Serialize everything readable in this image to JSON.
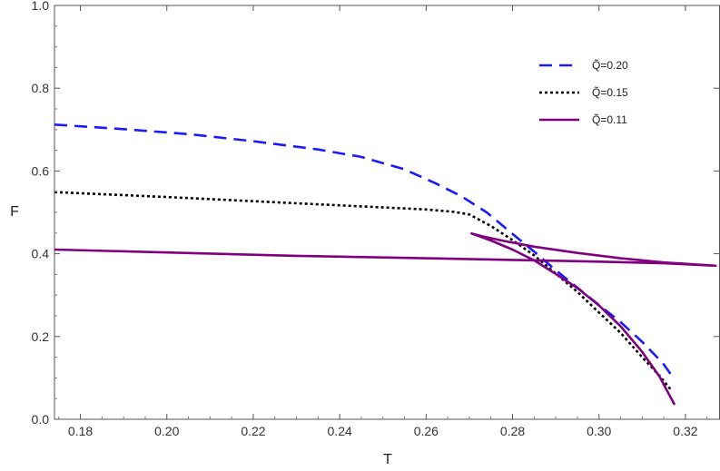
{
  "chart_data": {
    "type": "line",
    "xlabel": "T",
    "ylabel": "F",
    "xlim": [
      0.174,
      0.328
    ],
    "ylim": [
      0.0,
      1.0
    ],
    "xticks": [
      "0.18",
      "0.20",
      "0.22",
      "0.24",
      "0.26",
      "0.28",
      "0.30",
      "0.32"
    ],
    "yticks": [
      "0.0",
      "0.2",
      "0.4",
      "0.6",
      "0.8",
      "1.0"
    ],
    "grid": false,
    "legend_position": "top-right",
    "series": [
      {
        "name": "Q̃=0.20",
        "color": "#1a1aff",
        "style": "dashed",
        "points": [
          [
            0.174,
            0.712
          ],
          [
            0.19,
            0.701
          ],
          [
            0.205,
            0.689
          ],
          [
            0.22,
            0.672
          ],
          [
            0.235,
            0.652
          ],
          [
            0.245,
            0.634
          ],
          [
            0.255,
            0.604
          ],
          [
            0.262,
            0.571
          ],
          [
            0.268,
            0.54
          ],
          [
            0.274,
            0.5
          ],
          [
            0.28,
            0.448
          ],
          [
            0.285,
            0.405
          ],
          [
            0.29,
            0.36
          ],
          [
            0.295,
            0.318
          ],
          [
            0.3,
            0.276
          ],
          [
            0.305,
            0.235
          ],
          [
            0.31,
            0.187
          ],
          [
            0.3148,
            0.135
          ],
          [
            0.3172,
            0.1
          ]
        ]
      },
      {
        "name": "Q̃=0.15",
        "color": "#000000",
        "style": "dotted",
        "points": [
          [
            0.174,
            0.549
          ],
          [
            0.2,
            0.537
          ],
          [
            0.23,
            0.522
          ],
          [
            0.26,
            0.507
          ],
          [
            0.2665,
            0.501
          ],
          [
            0.27,
            0.495
          ],
          [
            0.275,
            0.467
          ],
          [
            0.28,
            0.433
          ],
          [
            0.285,
            0.396
          ],
          [
            0.29,
            0.352
          ],
          [
            0.295,
            0.308
          ],
          [
            0.3,
            0.258
          ],
          [
            0.305,
            0.209
          ],
          [
            0.31,
            0.15
          ],
          [
            0.314,
            0.105
          ],
          [
            0.3165,
            0.073
          ]
        ]
      },
      {
        "name": "Q̃=0.11",
        "color": "#800080",
        "style": "solid",
        "points": [
          [
            0.174,
            0.41
          ],
          [
            0.2,
            0.403
          ],
          [
            0.23,
            0.395
          ],
          [
            0.26,
            0.389
          ],
          [
            0.28,
            0.385
          ],
          [
            0.3,
            0.381
          ],
          [
            0.315,
            0.377
          ],
          [
            0.327,
            0.371
          ],
          [
            0.315,
            0.379
          ],
          [
            0.305,
            0.389
          ],
          [
            0.295,
            0.402
          ],
          [
            0.285,
            0.417
          ],
          [
            0.278,
            0.431
          ],
          [
            0.273,
            0.442
          ],
          [
            0.2705,
            0.449
          ],
          [
            0.275,
            0.432
          ],
          [
            0.28,
            0.41
          ],
          [
            0.285,
            0.384
          ],
          [
            0.29,
            0.351
          ],
          [
            0.295,
            0.317
          ],
          [
            0.3,
            0.275
          ],
          [
            0.305,
            0.225
          ],
          [
            0.31,
            0.163
          ],
          [
            0.314,
            0.103
          ],
          [
            0.3175,
            0.035
          ]
        ]
      }
    ]
  }
}
